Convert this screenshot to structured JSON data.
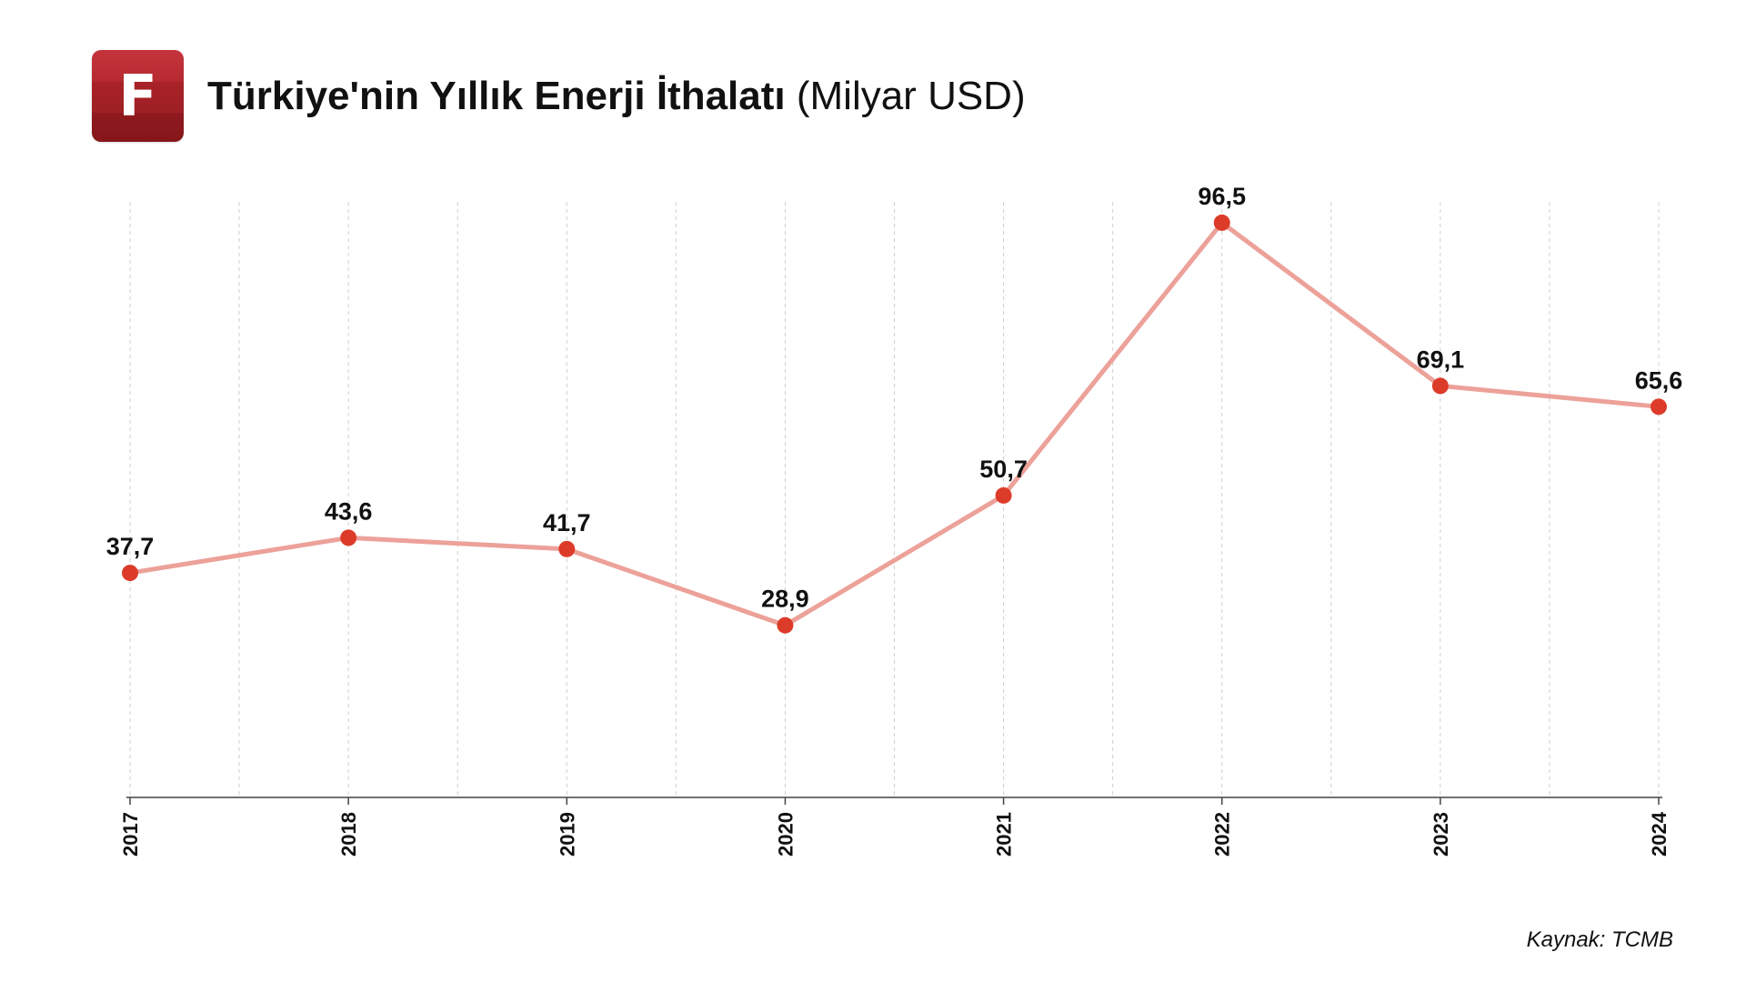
{
  "header": {
    "logo_letter": "F",
    "title_bold": "Türkiye'nin Yıllık Enerji İthalatı",
    "title_unit": "(Milyar USD)"
  },
  "source": "Kaynak: TCMB",
  "colors": {
    "line": "#eca199",
    "marker": "#dd3b2a",
    "brand": "#b02a30",
    "grid": "#cfcfcf",
    "axis": "#444444"
  },
  "chart_data": {
    "type": "line",
    "categories": [
      "2017",
      "2018",
      "2019",
      "2020",
      "2021",
      "2022",
      "2023",
      "2024"
    ],
    "series": [
      {
        "values": [
          37.7,
          43.6,
          41.7,
          28.9,
          50.7,
          96.5,
          69.1,
          65.6
        ],
        "labels": [
          "37,7",
          "43,6",
          "41,7",
          "28,9",
          "50,7",
          "96,5",
          "69,1",
          "65,6"
        ]
      }
    ],
    "title": "Türkiye'nin Yıllık Enerji İthalatı (Milyar USD)",
    "xlabel": "",
    "ylabel": "",
    "ylim": [
      0,
      100
    ],
    "grid": "vertical-dashed",
    "legend": "none",
    "source": "Kaynak: TCMB"
  }
}
